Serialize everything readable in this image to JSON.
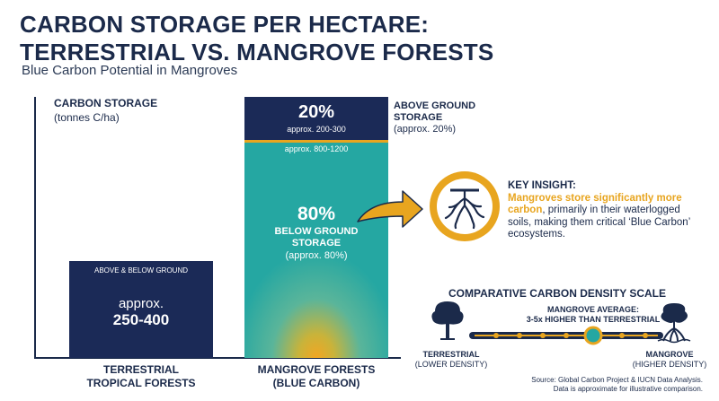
{
  "header": {
    "title_line1": "CARBON STORAGE PER HECTARE:",
    "title_line2": "TERRESTRIAL VS. MANGROVE FORESTS",
    "subtitle": "Blue Carbon Potential in Mangroves"
  },
  "chart_data": {
    "type": "bar",
    "title": "CARBON STORAGE PER HECTARE: TERRESTRIAL VS. MANGROVE FORESTS",
    "subtitle": "Blue Carbon Potential in Mangroves",
    "ylabel": "CARBON STORAGE",
    "yunit": "(tonnes C/ha)",
    "categories": [
      "TERRESTRIAL TROPICAL FORESTS",
      "MANGROVE FORESTS (BLUE CARBON)"
    ],
    "series": [
      {
        "name": "ABOVE & BELOW GROUND",
        "values": [
          325,
          null
        ]
      },
      {
        "name": "ABOVE GROUND STORAGE",
        "values": [
          null,
          250
        ]
      },
      {
        "name": "BELOW GROUND STORAGE",
        "values": [
          null,
          1000
        ]
      }
    ],
    "colors": {
      "navy": "#1b2a57",
      "teal": "#25a7a2",
      "gold": "#e8a51f"
    },
    "grid": false
  },
  "bars": {
    "terrestrial": {
      "label": "ABOVE & BELOW GROUND",
      "approx": "approx.",
      "range": "250-400",
      "category_line1": "TERRESTRIAL",
      "category_line2": "TROPICAL FORESTS"
    },
    "mangrove": {
      "top_pct": "20%",
      "top_range": "approx. 200-300",
      "bottom_range": "approx. 800-1200",
      "bottom_pct": "80%",
      "bottom_label_line1": "BELOW GROUND",
      "bottom_label_line2": "STORAGE",
      "bottom_label_line3": "(approx. 80%)",
      "category_line1": "MANGROVE FORESTS",
      "category_line2": "(BLUE CARBON)"
    }
  },
  "above_note": {
    "line1": "ABOVE GROUND",
    "line2": "STORAGE",
    "line3": "(approx. 20%)"
  },
  "insight": {
    "title": "KEY INSIGHT:",
    "highlight": "Mangroves store significantly more carbon",
    "rest": ", primarily in their waterlogged soils, making them critical ‘Blue Carbon’ ecosystems."
  },
  "scale": {
    "title": "COMPARATIVE CARBON DENSITY SCALE",
    "avg_line1": "MANGROVE AVERAGE:",
    "avg_line2": "3-5x HIGHER THAN TERRESTRIAL",
    "left_line1": "TERRESTRIAL",
    "left_line2": "(LOWER DENSITY)",
    "right_line1": "MANGROVE",
    "right_line2": "(HIGHER DENSITY)"
  },
  "source": {
    "line1": "Source: Global Carbon Project & IUCN Data Analysis.",
    "line2": "Data is approximate for illustrative comparison."
  }
}
